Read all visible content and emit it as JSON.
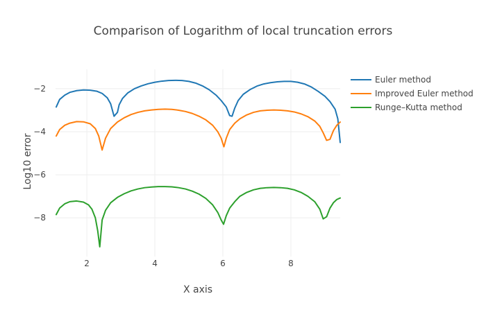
{
  "chart_data": {
    "type": "line",
    "title": "Comparison of Logarithm of local truncation errors",
    "xlabel": "X axis",
    "ylabel": "Log10 error",
    "xlim": [
      1.08,
      9.45
    ],
    "ylim": [
      -9.8,
      -1.1
    ],
    "xticks": [
      2,
      4,
      6,
      8
    ],
    "yticks": [
      -2,
      -4,
      -6,
      -8
    ],
    "grid": true,
    "legend_position": "top-right",
    "series": [
      {
        "name": "Euler method",
        "color": "#1f77b4",
        "x": [
          1.1,
          1.2,
          1.35,
          1.5,
          1.7,
          1.9,
          2.1,
          2.3,
          2.45,
          2.6,
          2.7,
          2.8,
          2.9,
          2.95,
          3.05,
          3.2,
          3.4,
          3.6,
          3.8,
          4.0,
          4.2,
          4.4,
          4.6,
          4.8,
          5.0,
          5.2,
          5.4,
          5.6,
          5.8,
          5.95,
          6.1,
          6.2,
          6.27,
          6.35,
          6.45,
          6.6,
          6.8,
          7.0,
          7.2,
          7.4,
          7.6,
          7.8,
          8.0,
          8.2,
          8.4,
          8.6,
          8.8,
          9.0,
          9.15,
          9.3,
          9.38,
          9.45
        ],
        "y": [
          -2.85,
          -2.5,
          -2.3,
          -2.17,
          -2.09,
          -2.06,
          -2.07,
          -2.12,
          -2.22,
          -2.42,
          -2.7,
          -3.28,
          -3.1,
          -2.75,
          -2.45,
          -2.2,
          -2.0,
          -1.87,
          -1.77,
          -1.7,
          -1.65,
          -1.62,
          -1.61,
          -1.62,
          -1.66,
          -1.74,
          -1.87,
          -2.05,
          -2.3,
          -2.55,
          -2.85,
          -3.25,
          -3.28,
          -2.9,
          -2.55,
          -2.26,
          -2.04,
          -1.88,
          -1.78,
          -1.72,
          -1.68,
          -1.66,
          -1.66,
          -1.7,
          -1.78,
          -1.92,
          -2.12,
          -2.35,
          -2.6,
          -2.95,
          -3.4,
          -4.5
        ]
      },
      {
        "name": "Improved Euler method",
        "color": "#ff7f0e",
        "x": [
          1.1,
          1.2,
          1.35,
          1.5,
          1.7,
          1.9,
          2.1,
          2.25,
          2.35,
          2.45,
          2.55,
          2.7,
          2.9,
          3.1,
          3.3,
          3.5,
          3.7,
          3.9,
          4.1,
          4.3,
          4.5,
          4.7,
          4.9,
          5.1,
          5.3,
          5.5,
          5.7,
          5.85,
          5.95,
          6.03,
          6.1,
          6.2,
          6.35,
          6.5,
          6.7,
          6.9,
          7.1,
          7.3,
          7.5,
          7.7,
          7.9,
          8.1,
          8.3,
          8.5,
          8.7,
          8.85,
          8.95,
          9.05,
          9.15,
          9.25,
          9.35,
          9.45
        ],
        "y": [
          -4.2,
          -3.9,
          -3.7,
          -3.6,
          -3.53,
          -3.54,
          -3.63,
          -3.85,
          -4.2,
          -4.85,
          -4.3,
          -3.85,
          -3.55,
          -3.35,
          -3.2,
          -3.1,
          -3.03,
          -2.99,
          -2.96,
          -2.95,
          -2.96,
          -3.0,
          -3.06,
          -3.15,
          -3.28,
          -3.45,
          -3.7,
          -4.0,
          -4.3,
          -4.7,
          -4.3,
          -3.9,
          -3.6,
          -3.4,
          -3.22,
          -3.1,
          -3.03,
          -3.0,
          -2.99,
          -3.0,
          -3.03,
          -3.08,
          -3.17,
          -3.3,
          -3.5,
          -3.75,
          -4.05,
          -4.4,
          -4.35,
          -3.95,
          -3.7,
          -3.55
        ]
      },
      {
        "name": "Runge–Kutta method",
        "color": "#2ca02c",
        "x": [
          1.1,
          1.2,
          1.35,
          1.5,
          1.7,
          1.9,
          2.05,
          2.15,
          2.25,
          2.32,
          2.38,
          2.45,
          2.55,
          2.7,
          2.9,
          3.1,
          3.3,
          3.5,
          3.7,
          3.9,
          4.1,
          4.3,
          4.5,
          4.7,
          4.9,
          5.1,
          5.3,
          5.5,
          5.7,
          5.85,
          5.95,
          6.02,
          6.1,
          6.2,
          6.35,
          6.5,
          6.7,
          6.9,
          7.1,
          7.3,
          7.5,
          7.7,
          7.9,
          8.1,
          8.3,
          8.5,
          8.7,
          8.85,
          8.95,
          9.05,
          9.15,
          9.25,
          9.35,
          9.45
        ],
        "y": [
          -7.85,
          -7.55,
          -7.35,
          -7.25,
          -7.22,
          -7.27,
          -7.4,
          -7.6,
          -8.0,
          -8.6,
          -9.35,
          -8.1,
          -7.65,
          -7.3,
          -7.05,
          -6.88,
          -6.75,
          -6.66,
          -6.6,
          -6.57,
          -6.55,
          -6.55,
          -6.56,
          -6.6,
          -6.66,
          -6.76,
          -6.9,
          -7.1,
          -7.4,
          -7.75,
          -8.1,
          -8.3,
          -7.9,
          -7.55,
          -7.25,
          -7.0,
          -6.82,
          -6.7,
          -6.63,
          -6.6,
          -6.59,
          -6.6,
          -6.63,
          -6.7,
          -6.82,
          -7.0,
          -7.25,
          -7.6,
          -8.05,
          -7.95,
          -7.55,
          -7.3,
          -7.15,
          -7.08
        ]
      }
    ]
  }
}
